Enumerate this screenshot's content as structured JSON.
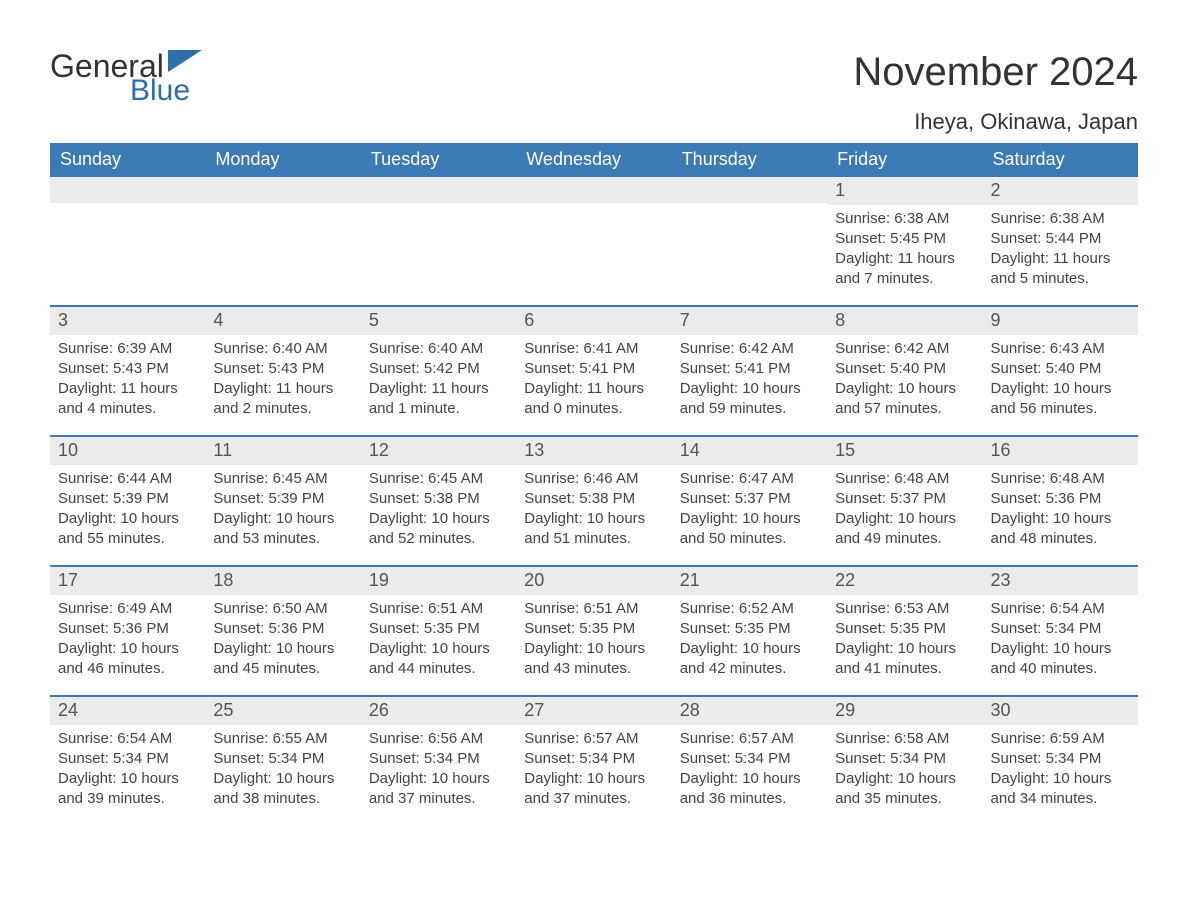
{
  "brand": {
    "word1": "General",
    "word2": "Blue",
    "flag_color": "#2b6fab",
    "text_color_dark": "#333333"
  },
  "title": {
    "month": "November 2024",
    "location": "Iheya, Okinawa, Japan"
  },
  "colors": {
    "header_bg": "#3b7ab5",
    "header_text": "#ffffff",
    "daynum_bg": "#ebebeb",
    "daynum_text": "#555555",
    "body_text": "#444444",
    "row_border": "#3b7ab5",
    "page_bg": "#ffffff"
  },
  "typography": {
    "month_fontsize": 40,
    "location_fontsize": 22,
    "header_fontsize": 18,
    "daynum_fontsize": 18,
    "body_fontsize": 15
  },
  "weekdays": [
    "Sunday",
    "Monday",
    "Tuesday",
    "Wednesday",
    "Thursday",
    "Friday",
    "Saturday"
  ],
  "layout": {
    "columns": 7,
    "rows": 5,
    "first_day_column": 5
  },
  "weeks": [
    [
      {
        "empty": true
      },
      {
        "empty": true
      },
      {
        "empty": true
      },
      {
        "empty": true
      },
      {
        "empty": true
      },
      {
        "num": "1",
        "sunrise": "Sunrise: 6:38 AM",
        "sunset": "Sunset: 5:45 PM",
        "daylight": "Daylight: 11 hours and 7 minutes."
      },
      {
        "num": "2",
        "sunrise": "Sunrise: 6:38 AM",
        "sunset": "Sunset: 5:44 PM",
        "daylight": "Daylight: 11 hours and 5 minutes."
      }
    ],
    [
      {
        "num": "3",
        "sunrise": "Sunrise: 6:39 AM",
        "sunset": "Sunset: 5:43 PM",
        "daylight": "Daylight: 11 hours and 4 minutes."
      },
      {
        "num": "4",
        "sunrise": "Sunrise: 6:40 AM",
        "sunset": "Sunset: 5:43 PM",
        "daylight": "Daylight: 11 hours and 2 minutes."
      },
      {
        "num": "5",
        "sunrise": "Sunrise: 6:40 AM",
        "sunset": "Sunset: 5:42 PM",
        "daylight": "Daylight: 11 hours and 1 minute."
      },
      {
        "num": "6",
        "sunrise": "Sunrise: 6:41 AM",
        "sunset": "Sunset: 5:41 PM",
        "daylight": "Daylight: 11 hours and 0 minutes."
      },
      {
        "num": "7",
        "sunrise": "Sunrise: 6:42 AM",
        "sunset": "Sunset: 5:41 PM",
        "daylight": "Daylight: 10 hours and 59 minutes."
      },
      {
        "num": "8",
        "sunrise": "Sunrise: 6:42 AM",
        "sunset": "Sunset: 5:40 PM",
        "daylight": "Daylight: 10 hours and 57 minutes."
      },
      {
        "num": "9",
        "sunrise": "Sunrise: 6:43 AM",
        "sunset": "Sunset: 5:40 PM",
        "daylight": "Daylight: 10 hours and 56 minutes."
      }
    ],
    [
      {
        "num": "10",
        "sunrise": "Sunrise: 6:44 AM",
        "sunset": "Sunset: 5:39 PM",
        "daylight": "Daylight: 10 hours and 55 minutes."
      },
      {
        "num": "11",
        "sunrise": "Sunrise: 6:45 AM",
        "sunset": "Sunset: 5:39 PM",
        "daylight": "Daylight: 10 hours and 53 minutes."
      },
      {
        "num": "12",
        "sunrise": "Sunrise: 6:45 AM",
        "sunset": "Sunset: 5:38 PM",
        "daylight": "Daylight: 10 hours and 52 minutes."
      },
      {
        "num": "13",
        "sunrise": "Sunrise: 6:46 AM",
        "sunset": "Sunset: 5:38 PM",
        "daylight": "Daylight: 10 hours and 51 minutes."
      },
      {
        "num": "14",
        "sunrise": "Sunrise: 6:47 AM",
        "sunset": "Sunset: 5:37 PM",
        "daylight": "Daylight: 10 hours and 50 minutes."
      },
      {
        "num": "15",
        "sunrise": "Sunrise: 6:48 AM",
        "sunset": "Sunset: 5:37 PM",
        "daylight": "Daylight: 10 hours and 49 minutes."
      },
      {
        "num": "16",
        "sunrise": "Sunrise: 6:48 AM",
        "sunset": "Sunset: 5:36 PM",
        "daylight": "Daylight: 10 hours and 48 minutes."
      }
    ],
    [
      {
        "num": "17",
        "sunrise": "Sunrise: 6:49 AM",
        "sunset": "Sunset: 5:36 PM",
        "daylight": "Daylight: 10 hours and 46 minutes."
      },
      {
        "num": "18",
        "sunrise": "Sunrise: 6:50 AM",
        "sunset": "Sunset: 5:36 PM",
        "daylight": "Daylight: 10 hours and 45 minutes."
      },
      {
        "num": "19",
        "sunrise": "Sunrise: 6:51 AM",
        "sunset": "Sunset: 5:35 PM",
        "daylight": "Daylight: 10 hours and 44 minutes."
      },
      {
        "num": "20",
        "sunrise": "Sunrise: 6:51 AM",
        "sunset": "Sunset: 5:35 PM",
        "daylight": "Daylight: 10 hours and 43 minutes."
      },
      {
        "num": "21",
        "sunrise": "Sunrise: 6:52 AM",
        "sunset": "Sunset: 5:35 PM",
        "daylight": "Daylight: 10 hours and 42 minutes."
      },
      {
        "num": "22",
        "sunrise": "Sunrise: 6:53 AM",
        "sunset": "Sunset: 5:35 PM",
        "daylight": "Daylight: 10 hours and 41 minutes."
      },
      {
        "num": "23",
        "sunrise": "Sunrise: 6:54 AM",
        "sunset": "Sunset: 5:34 PM",
        "daylight": "Daylight: 10 hours and 40 minutes."
      }
    ],
    [
      {
        "num": "24",
        "sunrise": "Sunrise: 6:54 AM",
        "sunset": "Sunset: 5:34 PM",
        "daylight": "Daylight: 10 hours and 39 minutes."
      },
      {
        "num": "25",
        "sunrise": "Sunrise: 6:55 AM",
        "sunset": "Sunset: 5:34 PM",
        "daylight": "Daylight: 10 hours and 38 minutes."
      },
      {
        "num": "26",
        "sunrise": "Sunrise: 6:56 AM",
        "sunset": "Sunset: 5:34 PM",
        "daylight": "Daylight: 10 hours and 37 minutes."
      },
      {
        "num": "27",
        "sunrise": "Sunrise: 6:57 AM",
        "sunset": "Sunset: 5:34 PM",
        "daylight": "Daylight: 10 hours and 37 minutes."
      },
      {
        "num": "28",
        "sunrise": "Sunrise: 6:57 AM",
        "sunset": "Sunset: 5:34 PM",
        "daylight": "Daylight: 10 hours and 36 minutes."
      },
      {
        "num": "29",
        "sunrise": "Sunrise: 6:58 AM",
        "sunset": "Sunset: 5:34 PM",
        "daylight": "Daylight: 10 hours and 35 minutes."
      },
      {
        "num": "30",
        "sunrise": "Sunrise: 6:59 AM",
        "sunset": "Sunset: 5:34 PM",
        "daylight": "Daylight: 10 hours and 34 minutes."
      }
    ]
  ]
}
